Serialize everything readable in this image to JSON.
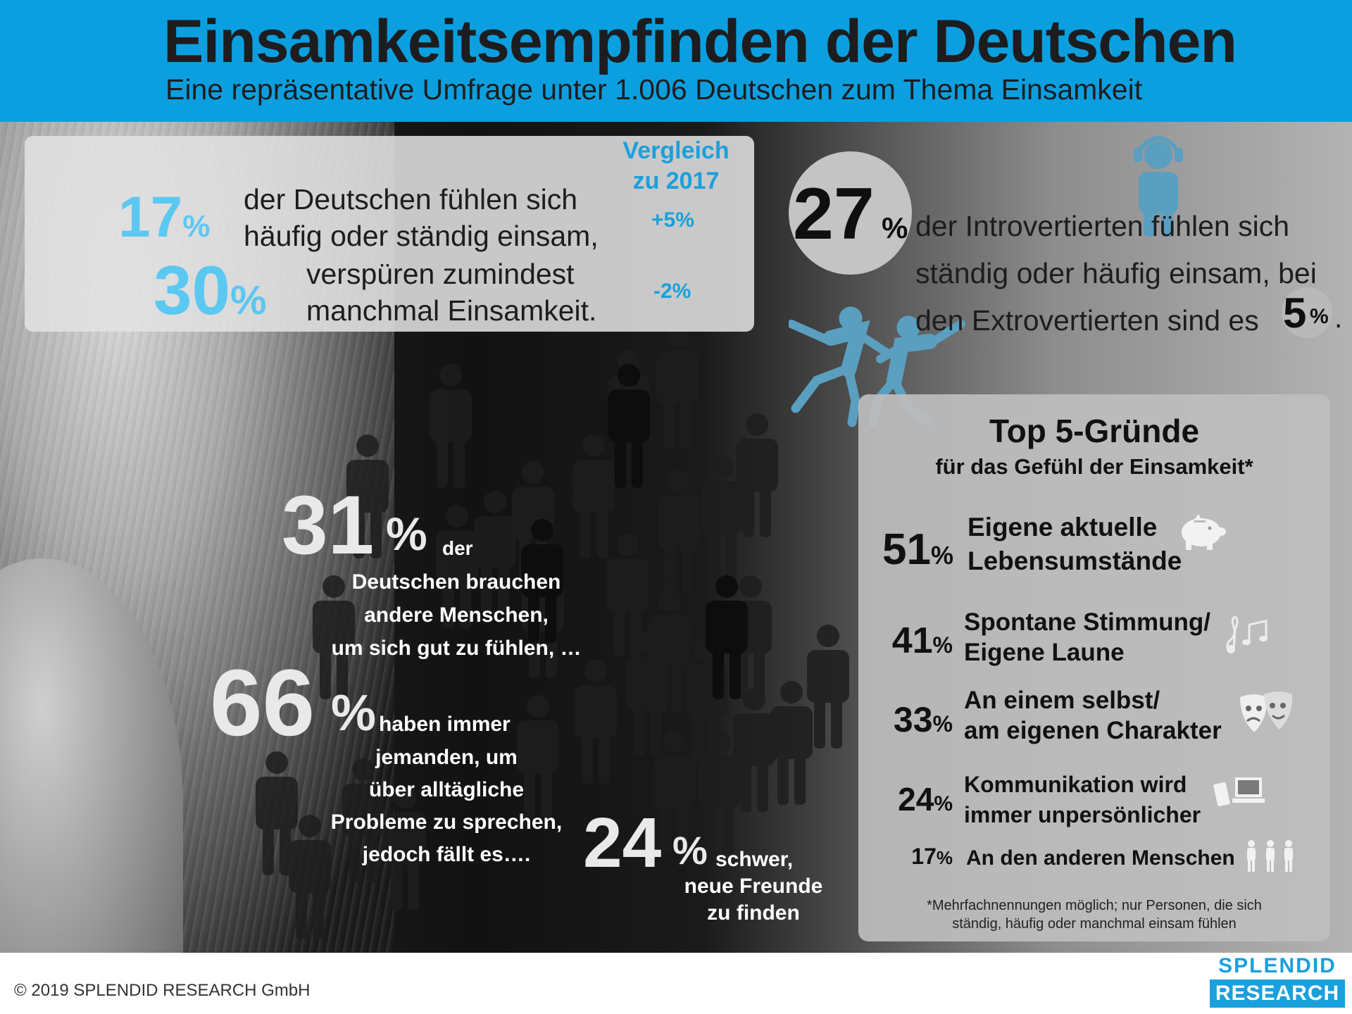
{
  "header": {
    "title": "Einsamkeitsempfinden der Deutschen",
    "subtitle": "Eine repräsentative Umfrage unter 1.006 Deutschen zum Thema Einsamkeit"
  },
  "comparison": {
    "heading_line1": "Vergleich",
    "heading_line2": "zu 2017",
    "row1": {
      "number": "17",
      "unit": "%",
      "text_line1": "der Deutschen fühlen sich",
      "text_line2": "häufig oder ständig einsam,",
      "delta": "+5%"
    },
    "row2": {
      "number": "30",
      "unit": "%",
      "text_line1": "verspüren zumindest",
      "text_line2": "manchmal Einsamkeit.",
      "delta": "-2%"
    }
  },
  "introverts": {
    "number": "27",
    "unit": "%",
    "text_line1": "der Introvertierten fühlen sich",
    "text_line2": "ständig oder häufig einsam, bei",
    "text_line3": "den Extrovertierten sind es",
    "extro_number": "5",
    "extro_unit": "%",
    "end_period": "."
  },
  "stats": {
    "s31": {
      "number": "31",
      "unit": "%",
      "word": "der",
      "line1": "Deutschen brauchen",
      "line2": "andere Menschen,",
      "line3": "um sich gut zu fühlen, …"
    },
    "s66": {
      "number": "66",
      "unit": "%",
      "line0": "haben immer",
      "line1": "jemanden, um",
      "line2": "über alltägliche",
      "line3": "Probleme zu sprechen,",
      "line4": "jedoch fällt es…."
    },
    "s24": {
      "number": "24",
      "unit": "%",
      "line0": "schwer,",
      "line1": "neue Freunde",
      "line2": "zu finden"
    }
  },
  "reasons": {
    "title": "Top 5-Gründe",
    "subtitle": "für das Gefühl der Einsamkeit*",
    "items": [
      {
        "number": "51",
        "unit": "%",
        "line1": "Eigene aktuelle",
        "line2": "Lebensumstände",
        "icon": "piggy-bank-icon",
        "value": 51
      },
      {
        "number": "41",
        "unit": "%",
        "line1": "Spontane Stimmung/",
        "line2": "Eigene Laune",
        "icon": "music-notes-icon",
        "value": 41
      },
      {
        "number": "33",
        "unit": "%",
        "line1": "An einem selbst/",
        "line2": "am eigenen Charakter",
        "icon": "theater-masks-icon",
        "value": 33
      },
      {
        "number": "24",
        "unit": "%",
        "line1": "Kommunikation wird",
        "line2": "immer unpersönlicher",
        "icon": "devices-icon",
        "value": 24
      },
      {
        "number": "17",
        "unit": "%",
        "line1": "An den anderen Menschen",
        "line2": "",
        "icon": "people-icon",
        "value": 17
      }
    ],
    "footnote_line1": "*Mehrfachnennungen möglich; nur Personen, die sich",
    "footnote_line2": "ständig, häufig oder manchmal einsam fühlen"
  },
  "footer": {
    "copyright": "© 2019 SPLENDID RESEARCH GmbH",
    "logo_top": "SPLENDID",
    "logo_bottom": "RESEARCH"
  },
  "colors": {
    "header_bg": "#0b9fdf",
    "accent_blue": "#5bc8f2",
    "delta_blue": "#1aa0dc",
    "figure_blue": "#5a9fc0"
  }
}
